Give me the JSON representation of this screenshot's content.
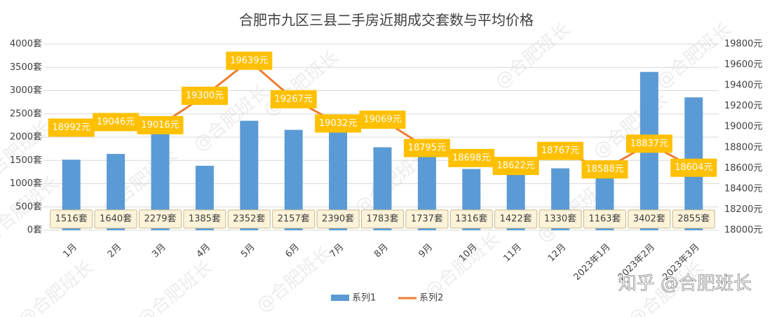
{
  "chart_data": {
    "type": "combo",
    "title": "合肥市九区三县二手房近期成交套数与平均价格",
    "categories": [
      "1月",
      "2月",
      "3月",
      "4月",
      "5月",
      "6月",
      "7月",
      "8月",
      "9月",
      "10月",
      "11月",
      "12月",
      "2023年1月",
      "2023年2月",
      "2023年3月"
    ],
    "series": [
      {
        "name": "系列1",
        "type": "bar",
        "color": "#5b9bd5",
        "values": [
          1516,
          1640,
          2279,
          1385,
          2352,
          2157,
          2390,
          1783,
          1737,
          1316,
          1422,
          1330,
          1163,
          3402,
          2855
        ],
        "value_labels": [
          "1516套",
          "1640套",
          "2279套",
          "1385套",
          "2352套",
          "2157套",
          "2390套",
          "1783套",
          "1737套",
          "1316套",
          "1422套",
          "1330套",
          "1163套",
          "3402套",
          "2855套"
        ]
      },
      {
        "name": "系列2",
        "type": "line",
        "axis": "y2",
        "color": "#ed7d31",
        "values": [
          18992,
          19046,
          19016,
          19300,
          19639,
          19267,
          19032,
          19069,
          18795,
          18698,
          18622,
          18767,
          18588,
          18837,
          18604
        ],
        "value_labels": [
          "18992元",
          "19046元",
          "19016元",
          "19300元",
          "19639元",
          "19267元",
          "19032元",
          "19069元",
          "18795元",
          "18698元",
          "18622元",
          "18767元",
          "18588元",
          "18837元",
          "18604元"
        ]
      }
    ],
    "ylim": [
      0,
      4000
    ],
    "yticks": [
      {
        "value": 0,
        "label": "0套"
      },
      {
        "value": 500,
        "label": "500套"
      },
      {
        "value": 1000,
        "label": "1000套"
      },
      {
        "value": 1500,
        "label": "1500套"
      },
      {
        "value": 2000,
        "label": "2000套"
      },
      {
        "value": 2500,
        "label": "2500套"
      },
      {
        "value": 3000,
        "label": "3000套"
      },
      {
        "value": 3500,
        "label": "3500套"
      },
      {
        "value": 4000,
        "label": "4000套"
      }
    ],
    "y2lim": [
      18000,
      19800
    ],
    "y2ticks": [
      {
        "value": 18000,
        "label": "18000元"
      },
      {
        "value": 18200,
        "label": "18200元"
      },
      {
        "value": 18400,
        "label": "18400元"
      },
      {
        "value": 18600,
        "label": "18600元"
      },
      {
        "value": 18800,
        "label": "18800元"
      },
      {
        "value": 19000,
        "label": "19000元"
      },
      {
        "value": 19200,
        "label": "19200元"
      },
      {
        "value": 19400,
        "label": "19400元"
      },
      {
        "value": 19600,
        "label": "19600元"
      },
      {
        "value": 19800,
        "label": "19800元"
      }
    ],
    "grid": true,
    "legend": "bottom",
    "watermark": "@合肥班长",
    "site_watermark": "知乎 @合肥班长"
  }
}
